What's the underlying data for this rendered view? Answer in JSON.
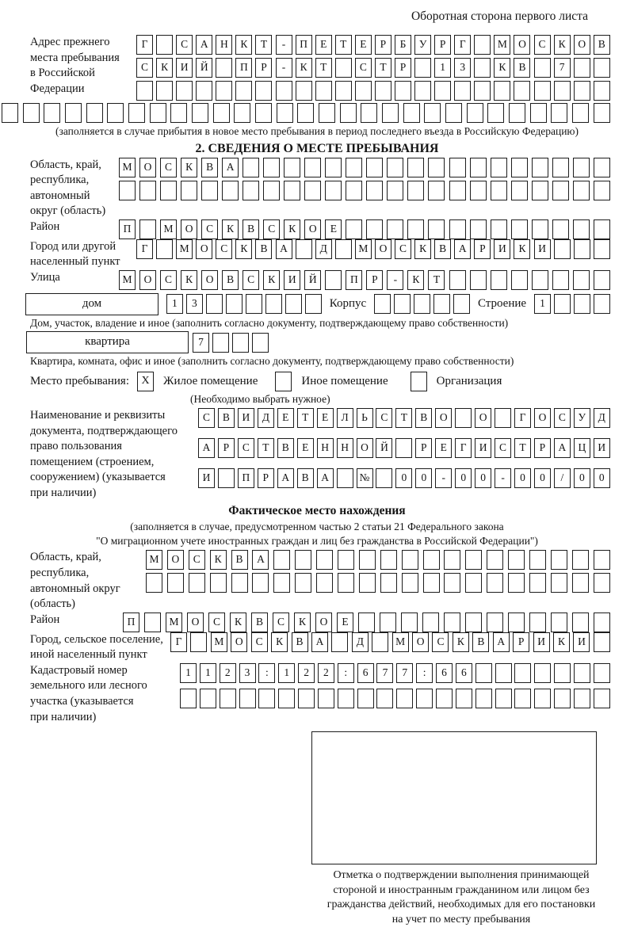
{
  "page": {
    "side_note": "Оборотная сторона первого листа"
  },
  "prev_address": {
    "label": "Адрес прежнего\nместа пребывания\nв Российской\nФедерации",
    "line1": "Г САНКТ-ПЕТЕРБУРГ МОСКОВ",
    "line2": "СКИЙ ПР-КТ СТР 13 КВ 7",
    "line3": "",
    "line4": "",
    "caption": "(заполняется в случае прибытия в новое место пребывания в период последнего въезда в Российскую Федерацию)"
  },
  "section2": {
    "title": "2. СВЕДЕНИЯ О МЕСТЕ ПРЕБЫВАНИЯ",
    "region": {
      "label": "Область, край,\nреспублика,\nавтономный\nокруг (область)",
      "line1": "МОСКВА",
      "line2": ""
    },
    "district": {
      "label": "Район",
      "line1": "П МОСКВСКОЕ"
    },
    "city": {
      "label": "Город или другой\nнаселенный пункт",
      "line1": "Г МОСКВА Д МОСКВАРИКИ"
    },
    "street": {
      "label": "Улица",
      "line1": "МОСКОВСКИЙ ПР-КТ"
    },
    "house": {
      "box_label": "дом",
      "value": "13",
      "korpus_label": "Корпус",
      "korpus_value": "",
      "stroenie_label": "Строение",
      "stroenie_value": "1",
      "caption": "Дом, участок, владение и иное (заполнить согласно документу, подтверждающему право собственности)"
    },
    "apartment": {
      "box_label": "квартира",
      "value": "7",
      "caption": "Квартира, комната, офис и иное (заполнить согласно документу, подтверждающему право собственности)"
    },
    "stay_type": {
      "label": "Место пребывания:",
      "options": [
        {
          "mark": "X",
          "label": "Жилое помещение"
        },
        {
          "mark": "",
          "label": "Иное помещение"
        },
        {
          "mark": "",
          "label": "Организация"
        }
      ],
      "note": "(Необходимо выбрать нужное)"
    },
    "document": {
      "label": "Наименование и реквизиты\nдокумента, подтверждающего\nправо пользования\nпомещением (строением,\nсооружением) (указывается\nпри наличии)",
      "line1": "СВИДЕТЕЛЬСТВО О ГОСУД",
      "line2": "АРСТВЕННОЙ РЕГИСТРАЦИ",
      "line3": "И ПРАВА № 00-00-00/000"
    }
  },
  "actual_location": {
    "title": "Фактическое место нахождения",
    "caption": "(заполняется в случае, предусмотренном частью 2 статьи 21 Федерального закона\n\"О миграционном учете иностранных граждан и лиц без гражданства в Российской Федерации\")",
    "region": {
      "label": "Область, край,\nреспублика,\nавтономный округ\n(область)",
      "line1": "МОСКВА",
      "line2": ""
    },
    "district": {
      "label": "Район",
      "line1": "П МОСКВСКОЕ"
    },
    "city": {
      "label": "Город, сельское поселение,\nиной населенный пункт",
      "line1": "Г МОСКВА Д МОСКВАРИКИ"
    },
    "cadastre": {
      "label": "Кадастровый номер\nземельного или лесного\nучастка (указывается\nпри наличии)",
      "line1": "1123:122:677:66",
      "line2": ""
    }
  },
  "stamp": {
    "caption": "Отметка о подтверждении выполнения принимающей\nстороной и иностранным гражданином или лицом без\nгражданства действий, необходимых для его постановки\nна учет по месту пребывания"
  }
}
